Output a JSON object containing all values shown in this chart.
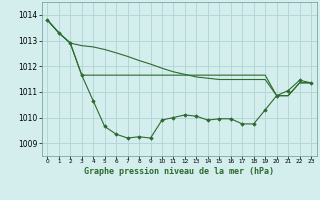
{
  "title": "Graphe pression niveau de la mer (hPa)",
  "background_color": "#d4eeee",
  "grid_color": "#aed4d4",
  "line_color": "#2d6a2d",
  "ylim": [
    1008.5,
    1014.5
  ],
  "xlim": [
    -0.5,
    23.5
  ],
  "yticks": [
    1009,
    1010,
    1011,
    1012,
    1013,
    1014
  ],
  "xticks": [
    0,
    1,
    2,
    3,
    4,
    5,
    6,
    7,
    8,
    9,
    10,
    11,
    12,
    13,
    14,
    15,
    16,
    17,
    18,
    19,
    20,
    21,
    22,
    23
  ],
  "series0": [
    1013.8,
    1013.3,
    1012.9,
    1011.65,
    1010.65,
    1009.65,
    1009.35,
    1009.2,
    1009.25,
    1009.2,
    1009.9,
    1010.0,
    1010.1,
    1010.05,
    1009.9,
    1009.95,
    1009.95,
    1009.75,
    1009.75,
    1010.3,
    1010.85,
    1011.05,
    1011.45,
    1011.35
  ],
  "series1": [
    1013.8,
    1013.3,
    1012.9,
    1011.65,
    1011.65,
    1011.65,
    1011.65,
    1011.65,
    1011.65,
    1011.65,
    1011.65,
    1011.65,
    1011.65,
    1011.65,
    1011.65,
    1011.65,
    1011.65,
    1011.65,
    1011.65,
    1011.65,
    1010.85,
    1010.85,
    1011.35,
    1011.35
  ],
  "series2": [
    1013.8,
    1013.3,
    1012.9,
    1012.8,
    1012.75,
    1012.65,
    1012.52,
    1012.38,
    1012.22,
    1012.08,
    1011.92,
    1011.78,
    1011.68,
    1011.58,
    1011.53,
    1011.48,
    1011.48,
    1011.48,
    1011.48,
    1011.48,
    1010.85,
    1010.85,
    1011.35,
    1011.35
  ]
}
